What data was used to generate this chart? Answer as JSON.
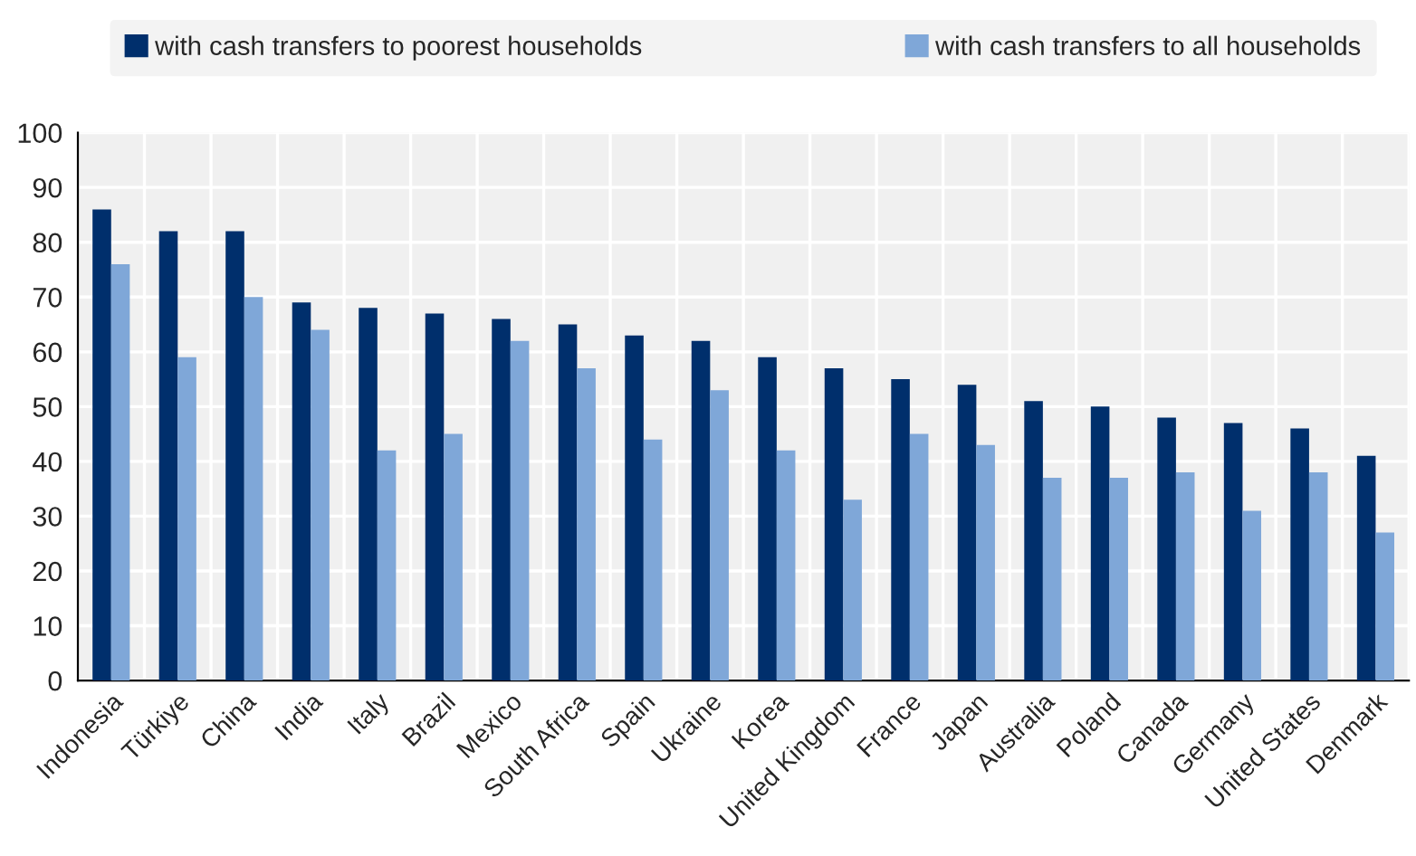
{
  "chart_data": {
    "type": "bar",
    "categories": [
      "Indonesia",
      "Türkiye",
      "China",
      "India",
      "Italy",
      "Brazil",
      "Mexico",
      "South Africa",
      "Spain",
      "Ukraine",
      "Korea",
      "United Kingdom",
      "France",
      "Japan",
      "Australia",
      "Poland",
      "Canada",
      "Germany",
      "United States",
      "Denmark"
    ],
    "series": [
      {
        "name": "with cash transfers to poorest households",
        "color": "#002f6c",
        "values": [
          86,
          82,
          82,
          69,
          68,
          67,
          66,
          65,
          63,
          62,
          59,
          57,
          55,
          54,
          51,
          50,
          48,
          47,
          46,
          41
        ]
      },
      {
        "name": "with cash transfers to all households",
        "color": "#7fa7d8",
        "values": [
          76,
          59,
          70,
          64,
          42,
          45,
          62,
          57,
          44,
          53,
          42,
          33,
          45,
          43,
          37,
          37,
          38,
          31,
          38,
          27
        ]
      }
    ],
    "ylim": [
      0,
      100
    ],
    "yticks": [
      0,
      10,
      20,
      30,
      40,
      50,
      60,
      70,
      80,
      90,
      100
    ],
    "grid": true,
    "legend": "top"
  }
}
